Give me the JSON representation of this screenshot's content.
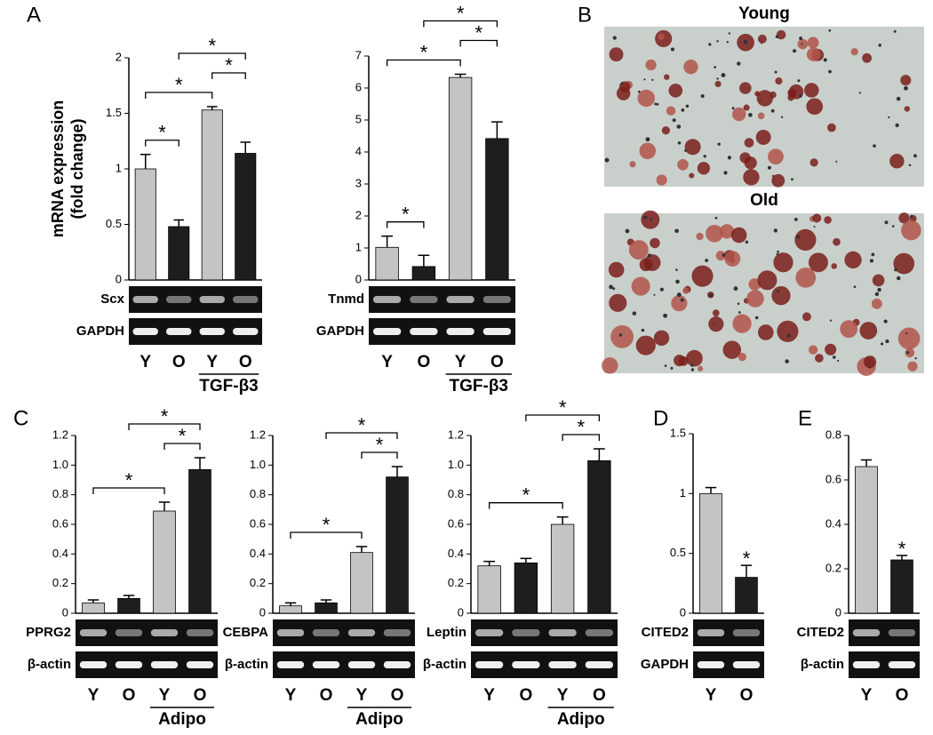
{
  "chart_data": [
    {
      "type": "bar",
      "panel": "A",
      "ylabel": [
        "mRNA expression",
        "(fold change)"
      ],
      "categories": [
        "Y",
        "O",
        "Y",
        "O"
      ],
      "group_label": "TGF-β3",
      "values": [
        1.0,
        0.48,
        1.53,
        1.14
      ],
      "errors": [
        0.13,
        0.06,
        0.03,
        0.1
      ],
      "colors": [
        "#c4c4c4",
        "#1e1e1e",
        "#c4c4c4",
        "#1e1e1e"
      ],
      "ylim": [
        0,
        2
      ],
      "yticks": [
        0,
        0.5,
        1,
        1.5,
        2
      ],
      "gel_rows": [
        "Scx",
        "GAPDH"
      ],
      "significance": [
        {
          "pair": [
            0,
            1
          ],
          "label": "*"
        },
        {
          "pair": [
            0,
            2
          ],
          "label": "*"
        },
        {
          "pair": [
            2,
            3
          ],
          "label": "*"
        },
        {
          "pair": [
            1,
            3
          ],
          "label": "*"
        }
      ]
    },
    {
      "type": "bar",
      "categories": [
        "Y",
        "O",
        "Y",
        "O"
      ],
      "group_label": "TGF-β3",
      "values": [
        1.02,
        0.42,
        6.33,
        4.42
      ],
      "errors": [
        0.35,
        0.35,
        0.1,
        0.52
      ],
      "colors": [
        "#c4c4c4",
        "#1e1e1e",
        "#c4c4c4",
        "#1e1e1e"
      ],
      "ylim": [
        0,
        7
      ],
      "yticks": [
        0,
        1,
        2,
        3,
        4,
        5,
        6,
        7
      ],
      "gel_rows": [
        "Tnmd",
        "GAPDH"
      ],
      "significance": [
        {
          "pair": [
            0,
            1
          ],
          "label": "*"
        },
        {
          "pair": [
            0,
            2
          ],
          "label": "*"
        },
        {
          "pair": [
            2,
            3
          ],
          "label": "*"
        },
        {
          "pair": [
            1,
            3
          ],
          "label": "*"
        }
      ]
    },
    {
      "type": "bar",
      "panel": "C",
      "categories": [
        "Y",
        "O",
        "Y",
        "O"
      ],
      "group_label": "Adipo",
      "values": [
        0.07,
        0.1,
        0.69,
        0.97
      ],
      "errors": [
        0.02,
        0.02,
        0.06,
        0.08
      ],
      "colors": [
        "#c4c4c4",
        "#1e1e1e",
        "#c4c4c4",
        "#1e1e1e"
      ],
      "ylim": [
        0,
        1.2
      ],
      "yticks": [
        0,
        0.2,
        0.4,
        0.6,
        0.8,
        {
          "value": 1,
          "label": "1.0"
        },
        1.2
      ],
      "gel_rows": [
        "PPRG2",
        "β-actin"
      ],
      "significance": [
        {
          "pair": [
            0,
            2
          ],
          "label": "*"
        },
        {
          "pair": [
            2,
            3
          ],
          "label": "*"
        },
        {
          "pair": [
            1,
            3
          ],
          "label": "*"
        }
      ]
    },
    {
      "type": "bar",
      "categories": [
        "Y",
        "O",
        "Y",
        "O"
      ],
      "group_label": "Adipo",
      "values": [
        0.05,
        0.07,
        0.41,
        0.92
      ],
      "errors": [
        0.02,
        0.02,
        0.04,
        0.07
      ],
      "colors": [
        "#c4c4c4",
        "#1e1e1e",
        "#c4c4c4",
        "#1e1e1e"
      ],
      "ylim": [
        0,
        1.2
      ],
      "yticks": [
        0,
        0.2,
        0.4,
        0.6,
        0.8,
        {
          "value": 1,
          "label": "1.0"
        },
        1.2
      ],
      "gel_rows": [
        "CEBPA",
        "β-actin"
      ],
      "significance": [
        {
          "pair": [
            0,
            2
          ],
          "label": "*"
        },
        {
          "pair": [
            2,
            3
          ],
          "label": "*"
        },
        {
          "pair": [
            1,
            3
          ],
          "label": "*"
        }
      ]
    },
    {
      "type": "bar",
      "categories": [
        "Y",
        "O",
        "Y",
        "O"
      ],
      "group_label": "Adipo",
      "values": [
        0.32,
        0.34,
        0.6,
        1.03
      ],
      "errors": [
        0.03,
        0.03,
        0.05,
        0.08
      ],
      "colors": [
        "#c4c4c4",
        "#1e1e1e",
        "#c4c4c4",
        "#1e1e1e"
      ],
      "ylim": [
        0,
        1.2
      ],
      "yticks": [
        0,
        0.2,
        0.4,
        0.6,
        0.8,
        {
          "value": 1,
          "label": "1.0"
        },
        1.2
      ],
      "gel_rows": [
        "Leptin",
        "β-actin"
      ],
      "significance": [
        {
          "pair": [
            0,
            2
          ],
          "label": "*"
        },
        {
          "pair": [
            2,
            3
          ],
          "label": "*"
        },
        {
          "pair": [
            1,
            3
          ],
          "label": "*"
        }
      ]
    },
    {
      "type": "bar",
      "panel": "D",
      "categories": [
        "Y",
        "O"
      ],
      "values": [
        1.0,
        0.3
      ],
      "errors": [
        0.05,
        0.1
      ],
      "colors": [
        "#c4c4c4",
        "#1e1e1e"
      ],
      "ylim": [
        0,
        1.5
      ],
      "yticks": [
        0,
        0.5,
        1,
        1.5
      ],
      "gel_rows": [
        "CITED2",
        "GAPDH"
      ],
      "significance": [
        {
          "pair": [
            1
          ],
          "label": "*"
        }
      ]
    },
    {
      "type": "bar",
      "panel": "E",
      "categories": [
        "Y",
        "O"
      ],
      "values": [
        0.66,
        0.24
      ],
      "errors": [
        0.03,
        0.02
      ],
      "colors": [
        "#c4c4c4",
        "#1e1e1e"
      ],
      "ylim": [
        0,
        0.8
      ],
      "yticks": [
        0,
        0.2,
        0.4,
        0.6,
        0.8
      ],
      "gel_rows": [
        "CITED2",
        "β-actin"
      ],
      "significance": [
        {
          "pair": [
            1
          ],
          "label": "*"
        }
      ]
    }
  ],
  "images": {
    "panel": "B",
    "labels": [
      "Young",
      "Old"
    ]
  }
}
